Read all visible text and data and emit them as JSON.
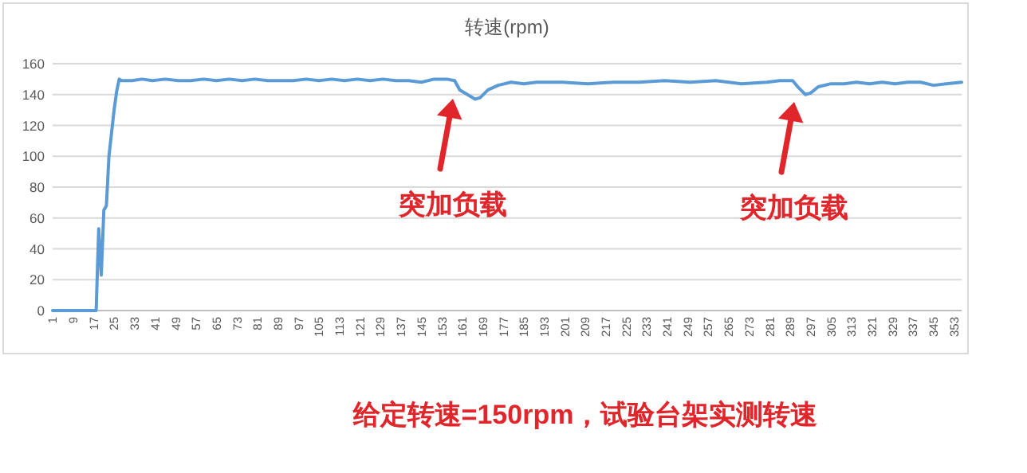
{
  "chart_data": {
    "type": "line",
    "title": "转速(rpm)",
    "x": [
      1,
      10,
      18,
      19,
      20,
      21,
      22,
      23,
      24,
      25,
      26,
      27,
      28,
      32,
      36,
      40,
      45,
      50,
      55,
      60,
      65,
      70,
      75,
      80,
      85,
      90,
      95,
      100,
      105,
      110,
      115,
      120,
      125,
      130,
      135,
      140,
      145,
      150,
      155,
      158,
      160,
      163,
      166,
      168,
      171,
      175,
      180,
      185,
      190,
      200,
      210,
      220,
      230,
      240,
      250,
      260,
      270,
      280,
      285,
      290,
      292,
      295,
      297,
      300,
      305,
      310,
      315,
      320,
      325,
      330,
      335,
      340,
      345,
      350,
      356
    ],
    "series": [
      {
        "color": "#5b9bd5",
        "values": [
          0,
          0,
          0,
          53,
          23,
          65,
          68,
          100,
          115,
          130,
          142,
          150,
          149,
          149,
          150,
          149,
          150,
          149,
          149,
          150,
          149,
          150,
          149,
          150,
          149,
          149,
          149,
          150,
          149,
          150,
          149,
          150,
          149,
          150,
          149,
          149,
          148,
          150,
          150,
          149,
          143,
          140,
          137,
          138,
          143,
          146,
          148,
          147,
          148,
          148,
          147,
          148,
          148,
          149,
          148,
          149,
          147,
          148,
          149,
          149,
          145,
          140,
          141,
          145,
          147,
          147,
          148,
          147,
          148,
          147,
          148,
          148,
          146,
          147,
          148
        ]
      }
    ],
    "xlim": [
      1,
      356
    ],
    "ylim": [
      0,
      160
    ],
    "xticks": [
      1,
      9,
      17,
      25,
      33,
      41,
      49,
      57,
      65,
      73,
      81,
      89,
      97,
      105,
      113,
      121,
      129,
      137,
      145,
      153,
      161,
      169,
      177,
      185,
      193,
      201,
      209,
      217,
      225,
      233,
      241,
      249,
      257,
      265,
      273,
      281,
      289,
      297,
      305,
      313,
      321,
      329,
      337,
      345,
      353
    ],
    "yticks": [
      0,
      20,
      40,
      60,
      80,
      100,
      120,
      140,
      160
    ],
    "grid": "y",
    "marker": "none",
    "line_style": "solid",
    "annotations": [
      "突加负载",
      "突加负载",
      "给定转速=150rpm，试验台架实测转速"
    ]
  }
}
